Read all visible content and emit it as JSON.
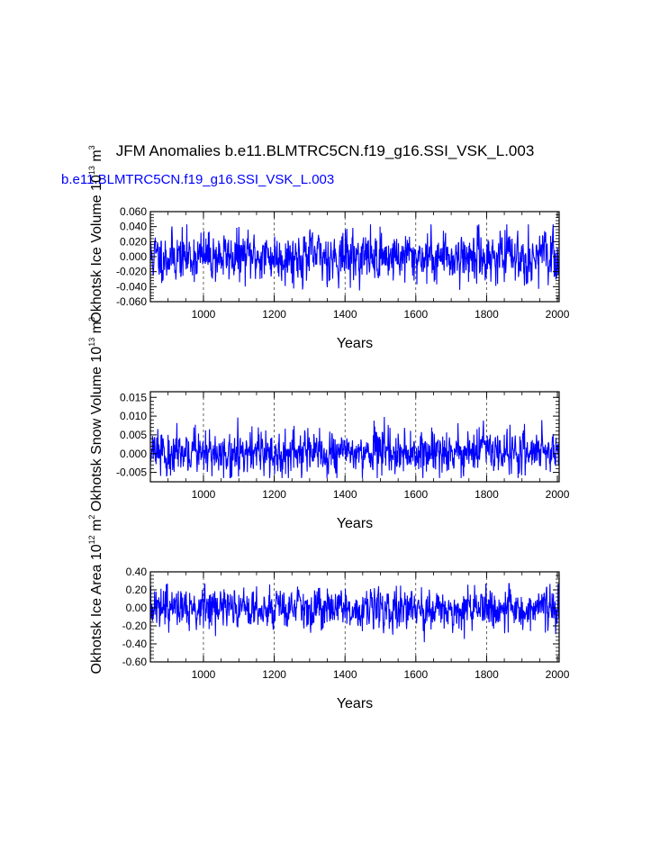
{
  "title": "JFM Anomalies b.e11.BLMTRC5CN.f19_g16.SSI_VSK_L.003",
  "subtitle": "b.e11.BLMTRC5CN.f19_g16.SSI_VSK_L.003",
  "subtitle_color": "#0000ff",
  "line_color": "#0000ff",
  "chart_data": [
    {
      "type": "line",
      "ylabel": {
        "text": "Okhotsk Ice Volume 10",
        "exp": "13",
        "unit": "m",
        "unit_exp": "3"
      },
      "xlabel": "Years",
      "xlim": [
        850,
        2005
      ],
      "ylim": [
        -0.06,
        0.06
      ],
      "xticks": [
        1000,
        1200,
        1400,
        1600,
        1800,
        2000
      ],
      "xtick_labels": [
        "1000",
        "1200",
        "1400",
        "1600",
        "1800",
        "2000"
      ],
      "yticks": [
        -0.06,
        -0.04,
        -0.02,
        0.0,
        0.02,
        0.04,
        0.06
      ],
      "ytick_labels": [
        "-0.060",
        "-0.040",
        "-0.020",
        "0.000",
        "0.020",
        "0.040",
        "0.060"
      ],
      "grid_x": [
        1000,
        1200,
        1400,
        1600,
        1800
      ],
      "series": [
        {
          "name": "Okhotsk Ice Volume",
          "x_start": 850,
          "x_step": 1,
          "count": 1156,
          "amplitude": 0.016,
          "min": -0.045,
          "max": 0.043,
          "seed": 11
        }
      ]
    },
    {
      "type": "line",
      "ylabel": {
        "text": "Okhotsk Snow Volume 10",
        "exp": "13",
        "unit": "m",
        "unit_exp": "3"
      },
      "xlabel": "Years",
      "xlim": [
        850,
        2005
      ],
      "ylim": [
        -0.0075,
        0.0165
      ],
      "xticks": [
        1000,
        1200,
        1400,
        1600,
        1800,
        2000
      ],
      "xtick_labels": [
        "1000",
        "1200",
        "1400",
        "1600",
        "1800",
        "2000"
      ],
      "yticks": [
        -0.005,
        0.0,
        0.005,
        0.01,
        0.015
      ],
      "ytick_labels": [
        "-0.005",
        "0.000",
        "0.005",
        "0.010",
        "0.015"
      ],
      "grid_x": [
        1000,
        1200,
        1400,
        1600,
        1800
      ],
      "series": [
        {
          "name": "Okhotsk Snow Volume",
          "x_start": 850,
          "x_step": 1,
          "count": 1156,
          "amplitude": 0.0028,
          "min": -0.0065,
          "max": 0.0125,
          "seed": 23,
          "skew": 1.6
        }
      ]
    },
    {
      "type": "line",
      "ylabel": {
        "text": "Okhotsk Ice Area 10",
        "exp": "12",
        "unit": "m",
        "unit_exp": "2"
      },
      "xlabel": "Years",
      "xlim": [
        850,
        2005
      ],
      "ylim": [
        -0.6,
        0.4
      ],
      "xticks": [
        1000,
        1200,
        1400,
        1600,
        1800,
        2000
      ],
      "xtick_labels": [
        "1000",
        "1200",
        "1400",
        "1600",
        "1800",
        "2000"
      ],
      "yticks": [
        -0.6,
        -0.4,
        -0.2,
        0.0,
        0.2,
        0.4
      ],
      "ytick_labels": [
        "-0.60",
        "-0.40",
        "-0.20",
        "0.00",
        "0.20",
        "0.40"
      ],
      "grid_x": [
        1000,
        1200,
        1400,
        1600,
        1800
      ],
      "series": [
        {
          "name": "Okhotsk Ice Area",
          "x_start": 850,
          "x_step": 1,
          "count": 1156,
          "amplitude": 0.11,
          "min": -0.43,
          "max": 0.27,
          "seed": 37,
          "skew": -1.8
        }
      ]
    }
  ]
}
